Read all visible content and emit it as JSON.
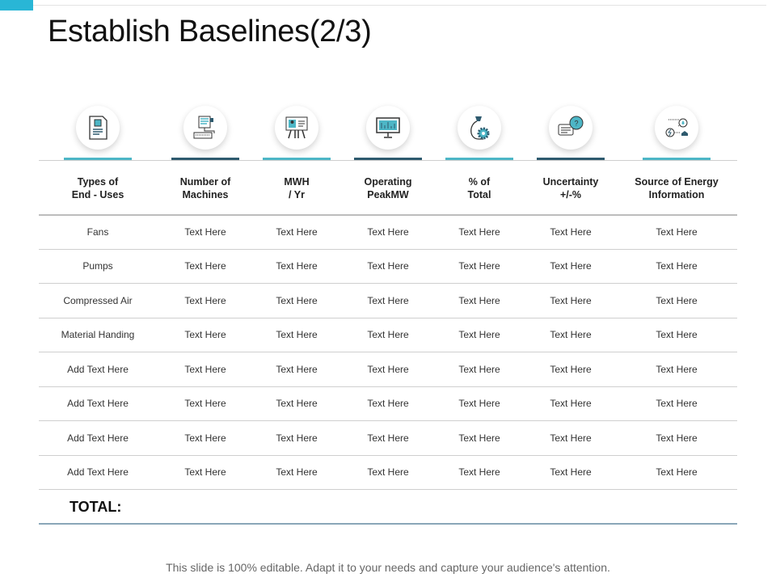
{
  "title": "Establish Baselines(2/3)",
  "colors": {
    "accent_light": "#4db6c6",
    "accent_dark": "#2e5a6e",
    "corner": "#29b6d6"
  },
  "columns": [
    {
      "l1": "Types of",
      "l2": "End  - Uses",
      "icon": "document-icon"
    },
    {
      "l1": "Number of",
      "l2": "Machines",
      "icon": "computer-keyboard-icon"
    },
    {
      "l1": "MWH",
      "l2": "/ Yr",
      "icon": "presentation-board-icon"
    },
    {
      "l1": "Operating",
      "l2": "PeakMW",
      "icon": "monitor-chart-icon"
    },
    {
      "l1": "% of",
      "l2": "Total",
      "icon": "money-bag-gear-icon"
    },
    {
      "l1": "Uncertainty",
      "l2": "+/-%",
      "icon": "question-chat-icon"
    },
    {
      "l1": "Source of Energy",
      "l2": "Information",
      "icon": "energy-source-icon"
    }
  ],
  "rows": [
    [
      "Fans",
      "Text Here",
      "Text Here",
      "Text Here",
      "Text Here",
      "Text Here",
      "Text Here"
    ],
    [
      "Pumps",
      "Text Here",
      "Text Here",
      "Text Here",
      "Text Here",
      "Text Here",
      "Text Here"
    ],
    [
      "Compressed  Air",
      "Text Here",
      "Text Here",
      "Text Here",
      "Text Here",
      "Text Here",
      "Text Here"
    ],
    [
      "Material Handing",
      "Text Here",
      "Text Here",
      "Text Here",
      "Text Here",
      "Text Here",
      "Text Here"
    ],
    [
      "Add Text Here",
      "Text Here",
      "Text Here",
      "Text Here",
      "Text Here",
      "Text Here",
      "Text Here"
    ],
    [
      "Add Text Here",
      "Text Here",
      "Text Here",
      "Text Here",
      "Text Here",
      "Text Here",
      "Text Here"
    ],
    [
      "Add Text Here",
      "Text Here",
      "Text Here",
      "Text Here",
      "Text Here",
      "Text Here",
      "Text Here"
    ],
    [
      "Add Text Here",
      "Text Here",
      "Text Here",
      "Text Here",
      "Text Here",
      "Text Here",
      "Text Here"
    ]
  ],
  "total_label": "TOTAL:",
  "footer": "This slide is 100% editable. Adapt it to your needs and capture your audience's attention."
}
